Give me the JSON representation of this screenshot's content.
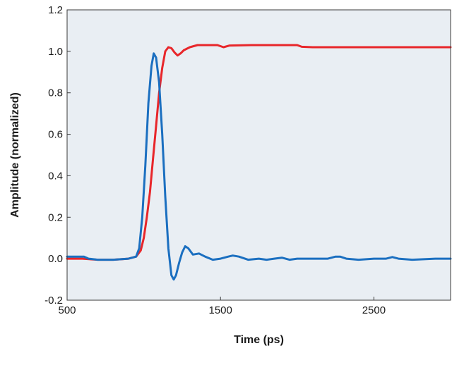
{
  "chart_data": {
    "type": "line",
    "title": "",
    "xlabel": "Time (ps)",
    "ylabel": "Amplitude (normalized)",
    "xlim": [
      500,
      3000
    ],
    "ylim": [
      -0.2,
      1.2
    ],
    "x_ticks": [
      500,
      1500,
      2500
    ],
    "x_tick_labels": [
      "500",
      "1500",
      "2500"
    ],
    "y_ticks": [
      -0.2,
      0.0,
      0.2,
      0.4,
      0.6,
      0.8,
      1.0,
      1.2
    ],
    "y_tick_labels": [
      "-0.2",
      "0.0",
      "0.2",
      "0.4",
      "0.6",
      "0.8",
      "1.0",
      "1.2"
    ],
    "grid": false,
    "legend": "none",
    "plot_background": "#e9eef3",
    "series": [
      {
        "color": "#e8262a",
        "points": [
          [
            500,
            0.0
          ],
          [
            600,
            0.0
          ],
          [
            700,
            -0.005
          ],
          [
            800,
            -0.005
          ],
          [
            900,
            0.0
          ],
          [
            950,
            0.01
          ],
          [
            980,
            0.04
          ],
          [
            1000,
            0.1
          ],
          [
            1020,
            0.2
          ],
          [
            1040,
            0.32
          ],
          [
            1060,
            0.48
          ],
          [
            1080,
            0.64
          ],
          [
            1100,
            0.8
          ],
          [
            1120,
            0.92
          ],
          [
            1140,
            1.0
          ],
          [
            1160,
            1.02
          ],
          [
            1180,
            1.015
          ],
          [
            1200,
            0.995
          ],
          [
            1220,
            0.98
          ],
          [
            1240,
            0.99
          ],
          [
            1260,
            1.005
          ],
          [
            1300,
            1.02
          ],
          [
            1350,
            1.03
          ],
          [
            1400,
            1.03
          ],
          [
            1480,
            1.03
          ],
          [
            1520,
            1.02
          ],
          [
            1560,
            1.028
          ],
          [
            1700,
            1.03
          ],
          [
            1900,
            1.03
          ],
          [
            2000,
            1.03
          ],
          [
            2030,
            1.022
          ],
          [
            2100,
            1.02
          ],
          [
            2500,
            1.02
          ],
          [
            3000,
            1.02
          ]
        ]
      },
      {
        "color": "#1b6fc0",
        "points": [
          [
            500,
            0.01
          ],
          [
            560,
            0.01
          ],
          [
            610,
            0.01
          ],
          [
            640,
            0.0
          ],
          [
            700,
            -0.005
          ],
          [
            800,
            -0.005
          ],
          [
            900,
            0.0
          ],
          [
            950,
            0.01
          ],
          [
            970,
            0.05
          ],
          [
            990,
            0.2
          ],
          [
            1010,
            0.45
          ],
          [
            1030,
            0.75
          ],
          [
            1050,
            0.93
          ],
          [
            1065,
            0.99
          ],
          [
            1080,
            0.97
          ],
          [
            1100,
            0.85
          ],
          [
            1120,
            0.6
          ],
          [
            1140,
            0.3
          ],
          [
            1160,
            0.05
          ],
          [
            1180,
            -0.08
          ],
          [
            1195,
            -0.1
          ],
          [
            1210,
            -0.08
          ],
          [
            1230,
            -0.02
          ],
          [
            1250,
            0.03
          ],
          [
            1270,
            0.06
          ],
          [
            1290,
            0.05
          ],
          [
            1320,
            0.02
          ],
          [
            1360,
            0.025
          ],
          [
            1400,
            0.01
          ],
          [
            1450,
            -0.005
          ],
          [
            1500,
            0.0
          ],
          [
            1550,
            0.01
          ],
          [
            1580,
            0.015
          ],
          [
            1620,
            0.01
          ],
          [
            1680,
            -0.005
          ],
          [
            1750,
            0.0
          ],
          [
            1800,
            -0.005
          ],
          [
            1850,
            0.0
          ],
          [
            1900,
            0.005
          ],
          [
            1950,
            -0.005
          ],
          [
            2000,
            0.0
          ],
          [
            2100,
            0.0
          ],
          [
            2200,
            0.0
          ],
          [
            2250,
            0.01
          ],
          [
            2280,
            0.01
          ],
          [
            2320,
            0.0
          ],
          [
            2400,
            -0.005
          ],
          [
            2500,
            0.0
          ],
          [
            2580,
            0.0
          ],
          [
            2620,
            0.008
          ],
          [
            2660,
            0.0
          ],
          [
            2750,
            -0.005
          ],
          [
            2900,
            0.0
          ],
          [
            3000,
            0.0
          ]
        ]
      }
    ]
  }
}
